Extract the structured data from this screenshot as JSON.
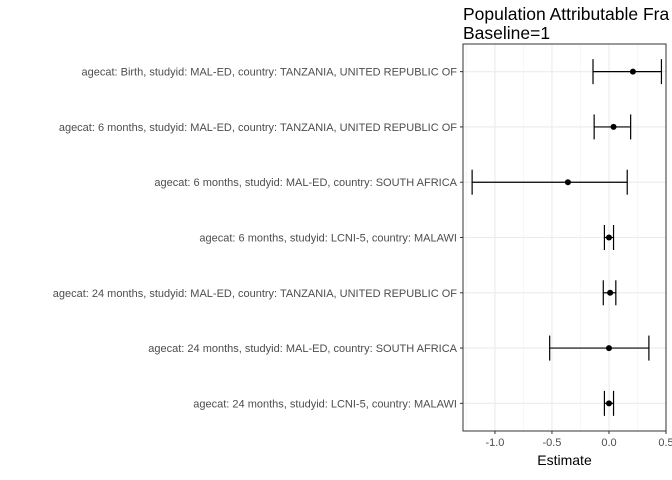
{
  "chart_data": {
    "type": "forest",
    "title": "Population Attributable Fra",
    "subtitle": "Baseline=1",
    "xlabel": "Estimate",
    "ylabel": "",
    "xlim": [
      -1.28,
      0.5
    ],
    "xticks": [
      -1.0,
      -0.5,
      0.0,
      0.5
    ],
    "xtick_labels": [
      "-1.0",
      "-0.5",
      "0.0",
      "0.5"
    ],
    "grid": true,
    "rows": [
      {
        "label": "agecat: Birth, studyid: MAL-ED, country: TANZANIA, UNITED REPUBLIC OF",
        "estimate": 0.21,
        "lower": -0.14,
        "upper": 0.46
      },
      {
        "label": "agecat: 6 months, studyid: MAL-ED, country: TANZANIA, UNITED REPUBLIC OF",
        "estimate": 0.04,
        "lower": -0.13,
        "upper": 0.19
      },
      {
        "label": "agecat: 6 months, studyid: MAL-ED, country: SOUTH AFRICA",
        "estimate": -0.36,
        "lower": -1.2,
        "upper": 0.16
      },
      {
        "label": "agecat: 6 months, studyid: LCNI-5, country: MALAWI",
        "estimate": 0.0,
        "lower": -0.04,
        "upper": 0.04
      },
      {
        "label": "agecat: 24 months, studyid: MAL-ED, country: TANZANIA, UNITED REPUBLIC OF",
        "estimate": 0.01,
        "lower": -0.05,
        "upper": 0.06
      },
      {
        "label": "agecat: 24 months, studyid: MAL-ED, country: SOUTH AFRICA",
        "estimate": 0.0,
        "lower": -0.52,
        "upper": 0.35
      },
      {
        "label": "agecat: 24 months, studyid: LCNI-5, country: MALAWI",
        "estimate": 0.0,
        "lower": -0.04,
        "upper": 0.04
      }
    ]
  }
}
